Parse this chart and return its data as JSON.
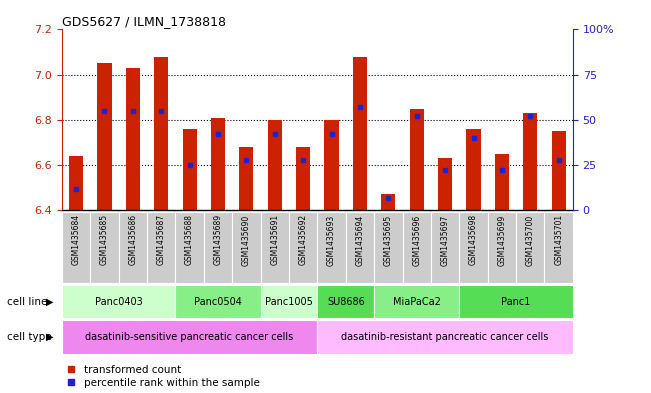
{
  "title": "GDS5627 / ILMN_1738818",
  "samples": [
    "GSM1435684",
    "GSM1435685",
    "GSM1435686",
    "GSM1435687",
    "GSM1435688",
    "GSM1435689",
    "GSM1435690",
    "GSM1435691",
    "GSM1435692",
    "GSM1435693",
    "GSM1435694",
    "GSM1435695",
    "GSM1435696",
    "GSM1435697",
    "GSM1435698",
    "GSM1435699",
    "GSM1435700",
    "GSM1435701"
  ],
  "transformed_count": [
    6.64,
    7.05,
    7.03,
    7.08,
    6.76,
    6.81,
    6.68,
    6.8,
    6.68,
    6.8,
    7.08,
    6.47,
    6.85,
    6.63,
    6.76,
    6.65,
    6.83,
    6.75
  ],
  "percentile_rank": [
    0.12,
    0.55,
    0.55,
    0.55,
    0.25,
    0.42,
    0.28,
    0.42,
    0.28,
    0.42,
    0.57,
    0.07,
    0.52,
    0.22,
    0.4,
    0.22,
    0.52,
    0.28
  ],
  "ylim": [
    6.4,
    7.2
  ],
  "yticks": [
    6.4,
    6.6,
    6.8,
    7.0,
    7.2
  ],
  "right_yticks": [
    0,
    25,
    50,
    75,
    100
  ],
  "right_ytick_labels": [
    "0",
    "25",
    "50",
    "75",
    "100%"
  ],
  "bar_color": "#cc2200",
  "blue_color": "#2222cc",
  "cell_lines": [
    {
      "label": "Panc0403",
      "start": 0,
      "end": 4,
      "color": "#ccffcc"
    },
    {
      "label": "Panc0504",
      "start": 4,
      "end": 7,
      "color": "#88ee88"
    },
    {
      "label": "Panc1005",
      "start": 7,
      "end": 9,
      "color": "#ccffcc"
    },
    {
      "label": "SU8686",
      "start": 9,
      "end": 11,
      "color": "#55dd55"
    },
    {
      "label": "MiaPaCa2",
      "start": 11,
      "end": 14,
      "color": "#88ee88"
    },
    {
      "label": "Panc1",
      "start": 14,
      "end": 18,
      "color": "#55dd55"
    }
  ],
  "cell_types": [
    {
      "label": "dasatinib-sensitive pancreatic cancer cells",
      "start": 0,
      "end": 9,
      "color": "#ee88ee"
    },
    {
      "label": "dasatinib-resistant pancreatic cancer cells",
      "start": 9,
      "end": 18,
      "color": "#ffbbff"
    }
  ],
  "cell_line_label": "cell line",
  "cell_type_label": "cell type",
  "legend_items": [
    {
      "color": "#cc2200",
      "label": "transformed count"
    },
    {
      "color": "#2222cc",
      "label": "percentile rank within the sample"
    }
  ],
  "bar_width": 0.5,
  "bg_color": "#ffffff",
  "tick_label_color_left": "#cc2200",
  "tick_label_color_right": "#2222cc",
  "sample_bg": "#cccccc"
}
